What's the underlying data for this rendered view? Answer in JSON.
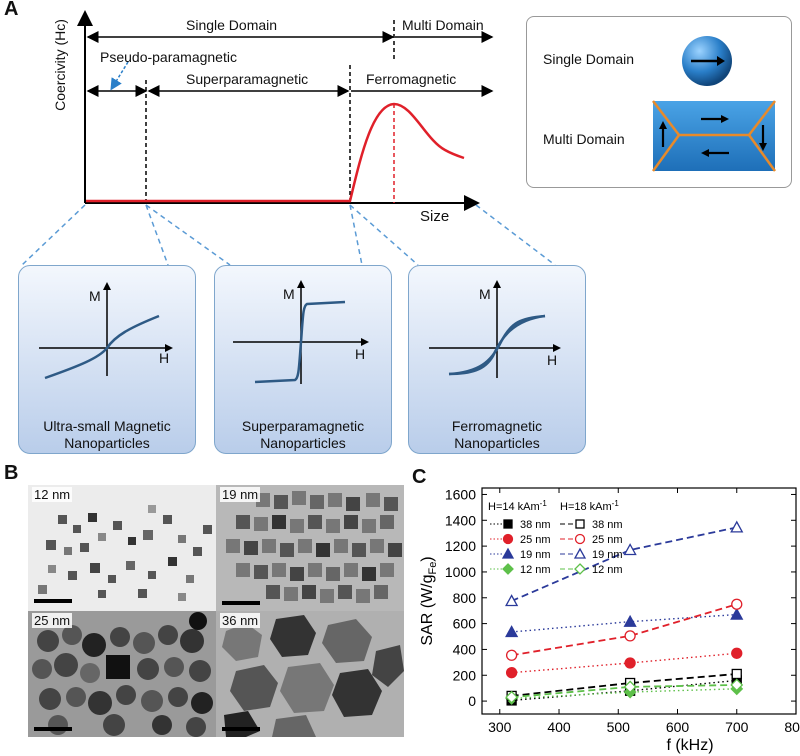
{
  "panel_a": {
    "letter": "A",
    "y_axis_label": "Coercivity (Hc)",
    "x_axis_label": "Size",
    "single_domain": "Single Domain",
    "multi_domain": "Multi Domain",
    "pseudo_paramagnetic": "Pseudo-paramagnetic",
    "superparamagnetic": "Superparamagnetic",
    "ferromagnetic": "Ferromagnetic",
    "legend": {
      "single_domain": "Single Domain",
      "multi_domain": "Multi Domain"
    },
    "cards": [
      {
        "axis_m": "M",
        "axis_h": "H",
        "caption_1": "Ultra-small Magnetic",
        "caption_2": "Nanoparticles"
      },
      {
        "axis_m": "M",
        "axis_h": "H",
        "caption_1": "Superparamagnetic",
        "caption_2": "Nanoparticles"
      },
      {
        "axis_m": "M",
        "axis_h": "H",
        "caption_1": "Ferromagnetic",
        "caption_2": "Nanoparticles"
      }
    ]
  },
  "panel_b": {
    "letter": "B",
    "images": [
      {
        "label": "12 nm"
      },
      {
        "label": "19 nm"
      },
      {
        "label": "25 nm"
      },
      {
        "label": "36 nm"
      }
    ]
  },
  "panel_c": {
    "letter": "C"
  },
  "chart_data": {
    "type": "scatter",
    "xlabel": "f (kHz)",
    "ylabel": "SAR (W/g",
    "ylabel_sub": "Fe",
    "ylabel_close": ")",
    "xlim": [
      270,
      800
    ],
    "ylim": [
      -100,
      1650
    ],
    "xticks": [
      300,
      400,
      500,
      600,
      700,
      800
    ],
    "yticks": [
      0,
      200,
      400,
      600,
      800,
      1000,
      1200,
      1400,
      1600
    ],
    "legend_headers": {
      "left": "H=14 kAm",
      "left_sup": "-1",
      "right": "H=18 kAm",
      "right_sup": "-1"
    },
    "legend_labels": [
      "38 nm",
      "25 nm",
      "19 nm",
      "12 nm"
    ],
    "x": [
      320,
      520,
      700
    ],
    "series": [
      {
        "name": "38 nm",
        "field": "H=14 kAm-1",
        "marker": "square",
        "filled": true,
        "color": "#000000",
        "line": "dotted",
        "values": [
          5,
          80,
          160
        ]
      },
      {
        "name": "25 nm",
        "field": "H=14 kAm-1",
        "marker": "circle",
        "filled": true,
        "color": "#e0202a",
        "line": "dotted",
        "values": [
          220,
          295,
          370
        ]
      },
      {
        "name": "19 nm",
        "field": "H=14 kAm-1",
        "marker": "triangle",
        "filled": true,
        "color": "#2b3a9a",
        "line": "dotted",
        "values": [
          535,
          615,
          670
        ]
      },
      {
        "name": "12 nm",
        "field": "H=14 kAm-1",
        "marker": "diamond",
        "filled": true,
        "color": "#5ec04a",
        "line": "dotted",
        "values": [
          20,
          70,
          95
        ]
      },
      {
        "name": "38 nm",
        "field": "H=18 kAm-1",
        "marker": "square",
        "filled": false,
        "color": "#000000",
        "line": "dashed",
        "values": [
          40,
          140,
          210
        ]
      },
      {
        "name": "25 nm",
        "field": "H=18 kAm-1",
        "marker": "circle",
        "filled": false,
        "color": "#e0202a",
        "line": "dashed",
        "values": [
          355,
          505,
          750
        ]
      },
      {
        "name": "19 nm",
        "field": "H=18 kAm-1",
        "marker": "triangle",
        "filled": false,
        "color": "#2b3a9a",
        "line": "dashed",
        "values": [
          775,
          1170,
          1345
        ]
      },
      {
        "name": "12 nm",
        "field": "H=18 kAm-1",
        "marker": "diamond",
        "filled": false,
        "color": "#5ec04a",
        "line": "dashed",
        "values": [
          30,
          110,
          125
        ]
      }
    ]
  }
}
